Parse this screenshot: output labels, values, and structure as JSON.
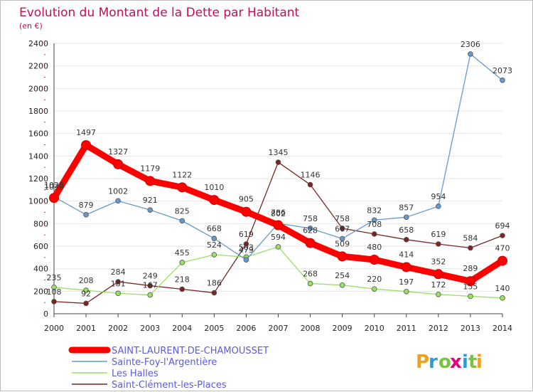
{
  "chart_data": {
    "type": "line",
    "title": "Evolution du Montant de la Dette par Habitant",
    "subtitle": "(en €)",
    "x": [
      "2000",
      "2001",
      "2002",
      "2003",
      "2004",
      "2005",
      "2006",
      "2007",
      "2008",
      "2009",
      "2010",
      "2011",
      "2012",
      "2013",
      "2014"
    ],
    "ylim": [
      0,
      2400
    ],
    "yticks": [
      0,
      200,
      400,
      600,
      800,
      1000,
      1200,
      1400,
      1600,
      1800,
      2000,
      2200,
      2400
    ],
    "grid": "horizontal",
    "legend_position": "bottom-left",
    "series": [
      {
        "name": "SAINT-LAURENT-DE-CHAMOUSSET",
        "color": "#ff0000",
        "values": [
          1028,
          1497,
          1327,
          1179,
          1122,
          1010,
          905,
          786,
          628,
          509,
          480,
          414,
          352,
          289,
          470
        ]
      },
      {
        "name": "Sainte-Foy-l'Argentière",
        "color": "#6699cc",
        "values": [
          1038,
          879,
          1002,
          921,
          825,
          668,
          479,
          802,
          758,
          667,
          832,
          857,
          954,
          2306,
          2073
        ]
      },
      {
        "name": "Les Halles",
        "color": "#99e066",
        "values": [
          235,
          208,
          181,
          167,
          455,
          524,
          503,
          594,
          268,
          254,
          220,
          197,
          172,
          155,
          140
        ]
      },
      {
        "name": "Saint-Clément-les-Places",
        "color": "#7a2424",
        "values": [
          108,
          92,
          284,
          249,
          218,
          186,
          619,
          1345,
          1146,
          758,
          708,
          658,
          619,
          584,
          694
        ]
      }
    ]
  },
  "logo": {
    "text": "Proxiti",
    "letter_colors": [
      "#f0a020",
      "#2e9ad8",
      "#7cc242",
      "#e3007a",
      "#2e9ad8",
      "#7cc242",
      "#f0a020"
    ]
  }
}
